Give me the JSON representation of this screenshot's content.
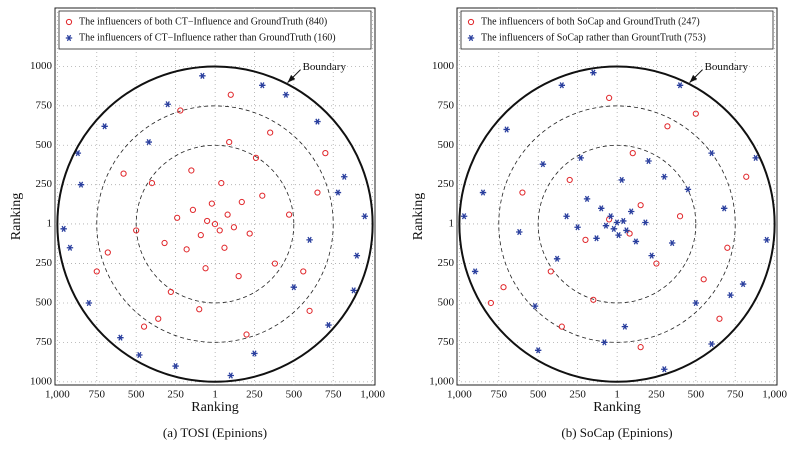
{
  "chart_data": [
    {
      "type": "scatter",
      "xlabel": "Ranking",
      "ylabel": "Ranking",
      "caption": "(a) TOSI (Epinions)",
      "annotation": "Boundary",
      "boundary": 1000,
      "rings": [
        500,
        750
      ],
      "grid": true,
      "xlim": [
        -1015,
        1015
      ],
      "ylim": [
        -1020,
        1370
      ],
      "xticks": [
        {
          "value": -1000,
          "label": "1,000"
        },
        {
          "value": -750,
          "label": "750"
        },
        {
          "value": -500,
          "label": "500"
        },
        {
          "value": -250,
          "label": "250"
        },
        1,
        250,
        500,
        750,
        {
          "value": 1000,
          "label": "1,000"
        }
      ],
      "yticks": [
        1000,
        750,
        500,
        250,
        1,
        {
          "value": -250,
          "label": "250"
        },
        {
          "value": -500,
          "label": "500"
        },
        {
          "value": -750,
          "label": "750"
        },
        {
          "value": -1000,
          "label": "1000"
        }
      ],
      "series": [
        {
          "name": "The influencers of both CT−Influence and GroundTruth (840)",
          "color": "#e0262a",
          "marker": "circle",
          "x": [
            0,
            30,
            -50,
            80,
            -90,
            120,
            -20,
            60,
            -140,
            170,
            -180,
            220,
            -240,
            40,
            -60,
            300,
            -320,
            150,
            -150,
            380,
            -400,
            260,
            -280,
            470,
            -500,
            90,
            -100,
            560,
            -580,
            350,
            -360,
            650,
            -680,
            200,
            -220,
            700,
            -450,
            -750,
            600,
            100
          ],
          "y": [
            0,
            -40,
            20,
            60,
            -70,
            -20,
            130,
            -150,
            90,
            140,
            -160,
            -60,
            40,
            260,
            -280,
            180,
            -120,
            -330,
            340,
            -250,
            260,
            420,
            -430,
            60,
            -40,
            520,
            -540,
            -300,
            320,
            580,
            -600,
            200,
            -180,
            -700,
            720,
            450,
            -650,
            -300,
            -550,
            820
          ]
        },
        {
          "name": "The influencers of CT−Influence rather than GroundTruth (160)",
          "color": "#2a3f9e",
          "marker": "asterisk",
          "x": [
            820,
            -850,
            900,
            -920,
            300,
            -250,
            650,
            -700,
            720,
            -600,
            950,
            -960,
            100,
            -80,
            450,
            -480,
            880,
            -870,
            500,
            -420,
            780,
            -800,
            250,
            -300,
            600
          ],
          "y": [
            300,
            250,
            -200,
            -150,
            880,
            -900,
            650,
            620,
            -640,
            -720,
            50,
            -30,
            -960,
            940,
            820,
            -830,
            -420,
            450,
            -400,
            520,
            200,
            -500,
            -820,
            760,
            -100
          ]
        }
      ]
    },
    {
      "type": "scatter",
      "xlabel": "Ranking",
      "ylabel": "Ranking",
      "caption": "(b) SoCap (Epinions)",
      "annotation": "Boundary",
      "boundary": 1000,
      "rings": [
        500,
        750
      ],
      "grid": true,
      "xlim": [
        -1015,
        1015
      ],
      "ylim": [
        -1020,
        1370
      ],
      "xticks": [
        {
          "value": -1000,
          "label": "1,000"
        },
        {
          "value": -750,
          "label": "750"
        },
        {
          "value": -500,
          "label": "500"
        },
        {
          "value": -250,
          "label": "250"
        },
        1,
        250,
        500,
        750,
        {
          "value": 1000,
          "label": "1,000"
        }
      ],
      "yticks": [
        1000,
        750,
        500,
        250,
        1,
        {
          "value": -250,
          "label": "250"
        },
        {
          "value": -500,
          "label": "500"
        },
        {
          "value": -750,
          "label": "750"
        },
        {
          "value": -1000,
          "label": "1,000"
        }
      ],
      "series": [
        {
          "name": "The influencers of both SoCap and GroundTruth (247)",
          "color": "#e0262a",
          "marker": "circle",
          "x": [
            -50,
            80,
            150,
            -200,
            250,
            -300,
            400,
            -420,
            100,
            -150,
            550,
            -600,
            320,
            -350,
            700,
            -720,
            150,
            -50,
            820,
            -800,
            500,
            650
          ],
          "y": [
            30,
            -60,
            120,
            -100,
            -250,
            280,
            50,
            -300,
            450,
            -480,
            -350,
            200,
            620,
            -650,
            -150,
            -400,
            -780,
            800,
            300,
            -500,
            700,
            -600
          ]
        },
        {
          "name": "The influencers of SoCap rather than GrountTruth (753)",
          "color": "#2a3f9e",
          "marker": "asterisk",
          "x": [
            0,
            -20,
            40,
            -40,
            60,
            10,
            -70,
            90,
            -100,
            120,
            -130,
            180,
            -190,
            220,
            -250,
            30,
            300,
            -320,
            350,
            -380,
            200,
            -230,
            450,
            -470,
            500,
            -520,
            600,
            -620,
            680,
            -700,
            720,
            50,
            -80,
            800,
            -850,
            880,
            -900,
            300,
            -350,
            400,
            950,
            -970,
            -500,
            600,
            -150
          ],
          "y": [
            10,
            -30,
            20,
            50,
            -40,
            -70,
            -10,
            80,
            100,
            -110,
            -90,
            10,
            160,
            -200,
            -20,
            280,
            300,
            50,
            -120,
            -220,
            400,
            420,
            220,
            380,
            -500,
            -520,
            450,
            -50,
            100,
            600,
            -450,
            -650,
            -750,
            -380,
            200,
            420,
            -300,
            -920,
            880,
            880,
            -100,
            50,
            -800,
            -760,
            960
          ]
        }
      ]
    }
  ]
}
